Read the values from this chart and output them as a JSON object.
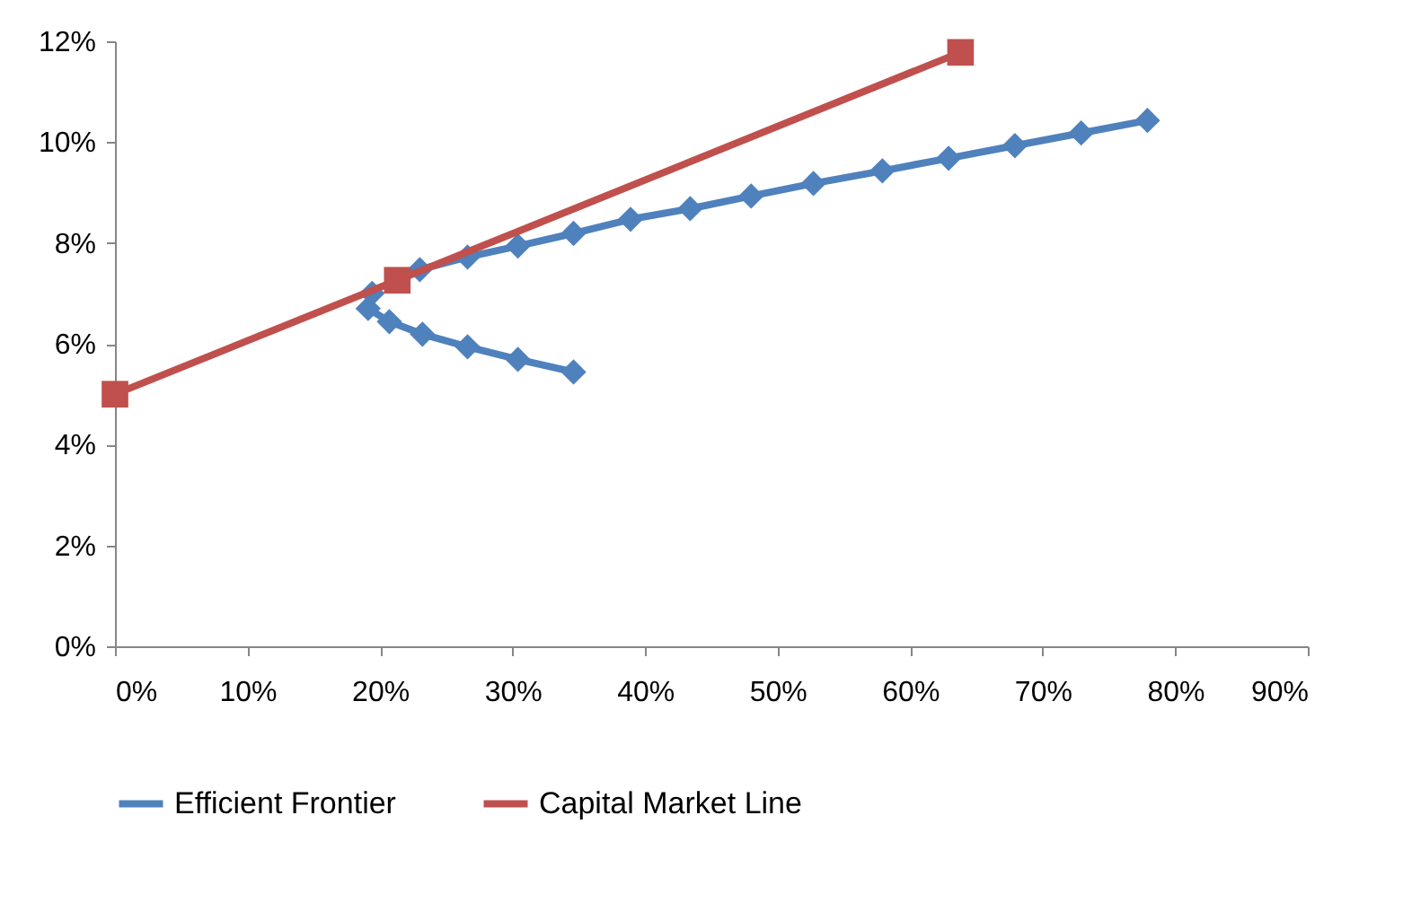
{
  "chart_data": {
    "type": "line",
    "xlim": [
      0,
      0.9
    ],
    "xticks": [
      {
        "value": 0,
        "label": "0%"
      },
      {
        "value": 0.1,
        "label": "10%"
      },
      {
        "value": 0.2,
        "label": "20%"
      },
      {
        "value": 0.3,
        "label": "30%"
      },
      {
        "value": 0.4,
        "label": "40%"
      },
      {
        "value": 0.5,
        "label": "50%"
      },
      {
        "value": 0.6,
        "label": "60%"
      },
      {
        "value": 0.7,
        "label": "70%"
      },
      {
        "value": 0.8,
        "label": "80%"
      },
      {
        "value": 0.9,
        "label": "90%"
      }
    ],
    "ylim": [
      0,
      0.12
    ],
    "yticks": [
      {
        "value": 0,
        "label": "0%"
      },
      {
        "value": 0.02,
        "label": "2%"
      },
      {
        "value": 0.04,
        "label": "4%"
      },
      {
        "value": 0.06,
        "label": "6%"
      },
      {
        "value": 0.08,
        "label": "8%"
      },
      {
        "value": 0.1,
        "label": "10%"
      },
      {
        "value": 0.12,
        "label": "12%"
      }
    ],
    "grid": false,
    "legend": "bottom",
    "series": [
      {
        "name": "Efficient Frontier",
        "color": "#4f81bd",
        "marker": "diamond",
        "x": [
          0.346,
          0.304,
          0.266,
          0.232,
          0.207,
          0.191,
          0.194,
          0.207,
          0.23,
          0.266,
          0.304,
          0.346,
          0.389,
          0.434,
          0.48,
          0.527,
          0.579,
          0.629,
          0.679,
          0.729,
          0.779
        ],
        "values": [
          0.0544,
          0.0569,
          0.0594,
          0.0619,
          0.0644,
          0.067,
          0.07,
          null,
          0.0747,
          0.0772,
          0.0794,
          0.0819,
          0.0847,
          0.0868,
          0.0893,
          0.0918,
          0.0943,
          0.0968,
          0.0993,
          0.1018,
          0.1043
        ]
      },
      {
        "name": "Capital Market Line",
        "color": "#c0504d",
        "marker": "square",
        "x": [
          0,
          0.213,
          0.638
        ],
        "values": [
          0.05,
          0.0726,
          0.1178
        ]
      }
    ]
  }
}
